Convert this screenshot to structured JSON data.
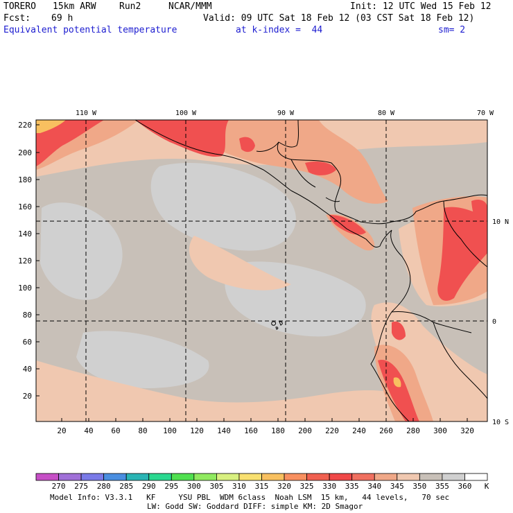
{
  "header": {
    "model": "TORERO",
    "resolution": "15km ARW",
    "run": "Run2",
    "org": "NCAR/MMM",
    "init": "Init: 12 UTC Wed 15 Feb 12",
    "fcst_label": "Fcst:",
    "fcst_value": "69 h",
    "valid": "Valid: 09 UTC Sat 18 Feb 12 (03 CST Sat 18 Feb 12)",
    "field": "Equivalent potential temperature",
    "level": "at k-index =  44",
    "smooth": "sm= 2"
  },
  "map": {
    "lon_labels": [
      "110 W",
      "100 W",
      "90 W",
      "80 W",
      "70 W"
    ],
    "lat_labels": [
      "10 N",
      "0",
      "10 S"
    ],
    "y_ticks": [
      "220",
      "200",
      "180",
      "160",
      "140",
      "120",
      "100",
      "80",
      "60",
      "40",
      "20"
    ],
    "x_ticks": [
      "20",
      "40",
      "60",
      "80",
      "100",
      "120",
      "140",
      "160",
      "180",
      "200",
      "220",
      "240",
      "260",
      "280",
      "300",
      "320"
    ]
  },
  "colorbar": {
    "labels": [
      "270",
      "275",
      "280",
      "285",
      "290",
      "295",
      "300",
      "305",
      "310",
      "315",
      "320",
      "325",
      "330",
      "335",
      "340",
      "345",
      "350",
      "355",
      "360"
    ],
    "unit": "K",
    "colors": [
      "#c64fc6",
      "#a070d8",
      "#7a7ae8",
      "#4a8ee0",
      "#2ab4b4",
      "#2ad890",
      "#50e050",
      "#90ea60",
      "#d8f080",
      "#f8e070",
      "#f8c060",
      "#f89060",
      "#f06050",
      "#f04848",
      "#f07060",
      "#f0a888",
      "#f0c8b0",
      "#c8c0b8",
      "#d0d0d0",
      "#ffffff"
    ]
  },
  "footer": {
    "line1": "Model Info: V3.3.1   KF     YSU PBL  WDM 6class  Noah LSM  15 km,   44 levels,   70 sec",
    "line2": "LW: Godd SW: Goddard DIFF: simple KM: 2D Smagor"
  }
}
